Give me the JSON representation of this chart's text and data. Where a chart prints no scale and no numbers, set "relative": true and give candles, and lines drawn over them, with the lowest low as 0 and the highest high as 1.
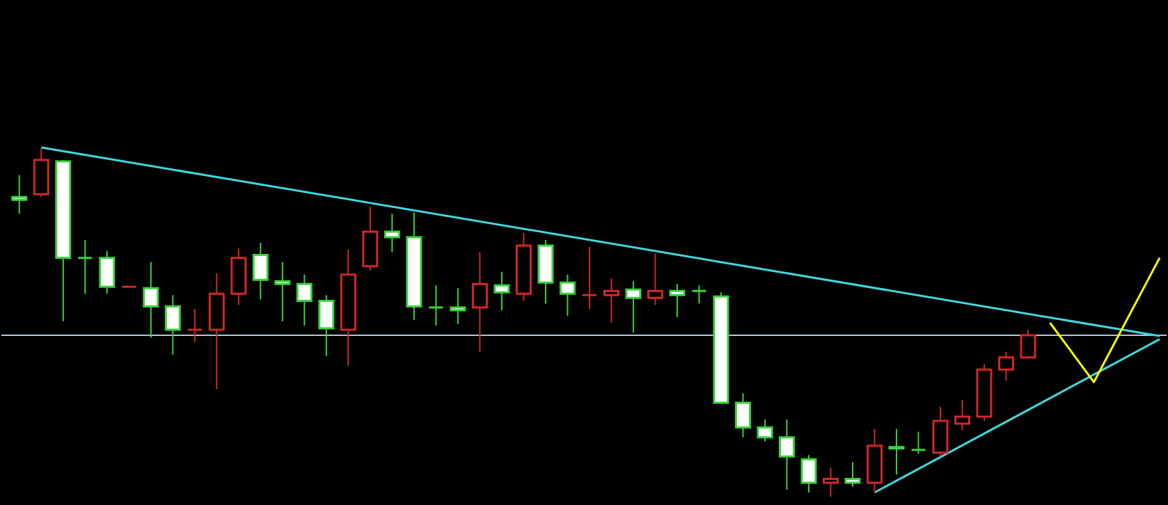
{
  "chart_data": {
    "type": "candlestick",
    "relative": true,
    "grid": false,
    "categories": [
      null,
      null,
      null,
      null,
      null,
      null,
      null,
      null,
      null,
      null,
      null,
      null,
      null,
      null,
      null,
      null,
      null,
      null,
      null,
      null,
      null,
      null,
      null,
      null,
      null,
      null,
      null,
      null,
      null,
      null,
      null,
      null,
      null,
      null,
      null,
      null,
      null,
      null,
      null,
      null,
      null,
      null,
      null,
      null,
      null,
      null,
      null,
      null,
      null,
      null,
      null,
      null,
      null
    ],
    "ohlc": [
      [
        0.858,
        0.921,
        0.81,
        0.85
      ],
      [
        0.866,
        1.0,
        0.858,
        0.964
      ],
      [
        0.96,
        0.964,
        0.502,
        0.684
      ],
      [
        0.684,
        0.735,
        0.581,
        0.684
      ],
      [
        0.684,
        0.704,
        0.581,
        0.601
      ],
      [
        0.601,
        0.601,
        0.601,
        0.601
      ],
      [
        0.597,
        0.672,
        0.455,
        0.545
      ],
      [
        0.545,
        0.577,
        0.407,
        0.478
      ],
      [
        0.478,
        0.538,
        0.443,
        0.478
      ],
      [
        0.478,
        0.64,
        0.308,
        0.581
      ],
      [
        0.581,
        0.711,
        0.549,
        0.684
      ],
      [
        0.692,
        0.727,
        0.565,
        0.621
      ],
      [
        0.617,
        0.672,
        0.502,
        0.609
      ],
      [
        0.609,
        0.636,
        0.49,
        0.561
      ],
      [
        0.561,
        0.577,
        0.403,
        0.482
      ],
      [
        0.478,
        0.708,
        0.375,
        0.636
      ],
      [
        0.66,
        0.83,
        0.648,
        0.759
      ],
      [
        0.759,
        0.81,
        0.7,
        0.743
      ],
      [
        0.743,
        0.814,
        0.506,
        0.545
      ],
      [
        0.542,
        0.605,
        0.49,
        0.542
      ],
      [
        0.542,
        0.597,
        0.494,
        0.534
      ],
      [
        0.542,
        0.7,
        0.415,
        0.609
      ],
      [
        0.605,
        0.644,
        0.534,
        0.585
      ],
      [
        0.581,
        0.755,
        0.561,
        0.719
      ],
      [
        0.719,
        0.735,
        0.553,
        0.613
      ],
      [
        0.613,
        0.636,
        0.518,
        0.581
      ],
      [
        0.577,
        0.715,
        0.538,
        0.577
      ],
      [
        0.577,
        0.625,
        0.498,
        0.589
      ],
      [
        0.593,
        0.617,
        0.47,
        0.569
      ],
      [
        0.569,
        0.696,
        0.549,
        0.589
      ],
      [
        0.589,
        0.609,
        0.514,
        0.577
      ],
      [
        0.589,
        0.605,
        0.553,
        0.589
      ],
      [
        0.573,
        0.585,
        0.265,
        0.269
      ],
      [
        0.269,
        0.296,
        0.17,
        0.198
      ],
      [
        0.198,
        0.221,
        0.158,
        0.17
      ],
      [
        0.17,
        0.221,
        0.02,
        0.115
      ],
      [
        0.107,
        0.119,
        0.012,
        0.04
      ],
      [
        0.04,
        0.083,
        0.0,
        0.051
      ],
      [
        0.051,
        0.099,
        0.028,
        0.04
      ],
      [
        0.04,
        0.194,
        0.012,
        0.146
      ],
      [
        0.142,
        0.194,
        0.063,
        0.138
      ],
      [
        0.134,
        0.186,
        0.123,
        0.134
      ],
      [
        0.126,
        0.257,
        0.115,
        0.217
      ],
      [
        0.209,
        0.277,
        0.19,
        0.229
      ],
      [
        0.229,
        0.379,
        0.217,
        0.364
      ],
      [
        0.364,
        0.415,
        0.332,
        0.399
      ],
      [
        0.399,
        0.478,
        0.395,
        0.462
      ],
      null,
      null,
      null,
      null,
      null,
      null
    ],
    "colors": [
      "#3cd23c",
      "#d02828",
      "#3cd23c",
      "#3cd23c",
      "#3cd23c",
      "#d02828",
      "#3cd23c",
      "#3cd23c",
      "#d02828",
      "#d02828",
      "#d02828",
      "#3cd23c",
      "#3cd23c",
      "#3cd23c",
      "#3cd23c",
      "#d02828",
      "#d02828",
      "#3cd23c",
      "#3cd23c",
      "#3cd23c",
      "#3cd23c",
      "#d02828",
      "#3cd23c",
      "#d02828",
      "#3cd23c",
      "#3cd23c",
      "#d02828",
      "#d02828",
      "#3cd23c",
      "#d02828",
      "#3cd23c",
      "#3cd23c",
      "#3cd23c",
      "#3cd23c",
      "#3cd23c",
      "#3cd23c",
      "#3cd23c",
      "#d02828",
      "#3cd23c",
      "#d02828",
      "#3cd23c",
      "#3cd23c",
      "#d02828",
      "#d02828",
      "#d02828",
      "#d02828",
      "#d02828",
      null,
      null,
      null,
      null,
      null,
      null
    ],
    "ref_lines": [
      {
        "axis": "y",
        "value": 0.462,
        "color": "#b4c8d2"
      }
    ],
    "series": [
      {
        "type": "line",
        "color": "#40d8e0",
        "values": [
          null,
          1.0,
          null,
          null,
          null,
          null,
          null,
          null,
          null,
          null,
          null,
          null,
          null,
          null,
          null,
          null,
          null,
          null,
          null,
          null,
          null,
          null,
          null,
          null,
          null,
          null,
          null,
          null,
          null,
          null,
          null,
          null,
          null,
          null,
          null,
          null,
          null,
          null,
          null,
          null,
          null,
          null,
          null,
          null,
          null,
          null,
          null,
          null,
          null,
          null,
          null,
          null,
          0.46
        ]
      },
      {
        "type": "line",
        "color": "#40d8e0",
        "values": [
          null,
          null,
          null,
          null,
          null,
          null,
          null,
          null,
          null,
          null,
          null,
          null,
          null,
          null,
          null,
          null,
          null,
          null,
          null,
          null,
          null,
          null,
          null,
          null,
          null,
          null,
          null,
          null,
          null,
          null,
          null,
          null,
          null,
          null,
          null,
          null,
          null,
          null,
          null,
          0.012,
          null,
          null,
          null,
          null,
          null,
          null,
          null,
          null,
          null,
          null,
          null,
          null,
          0.451
        ]
      },
      {
        "type": "line",
        "color": "#ffff00",
        "values": [
          null,
          null,
          null,
          null,
          null,
          null,
          null,
          null,
          null,
          null,
          null,
          null,
          null,
          null,
          null,
          null,
          null,
          null,
          null,
          null,
          null,
          null,
          null,
          null,
          null,
          null,
          null,
          null,
          null,
          null,
          null,
          null,
          null,
          null,
          null,
          null,
          null,
          null,
          null,
          null,
          null,
          null,
          null,
          null,
          null,
          null,
          null,
          0.498,
          null,
          0.328,
          null,
          null,
          0.684
        ]
      }
    ]
  }
}
